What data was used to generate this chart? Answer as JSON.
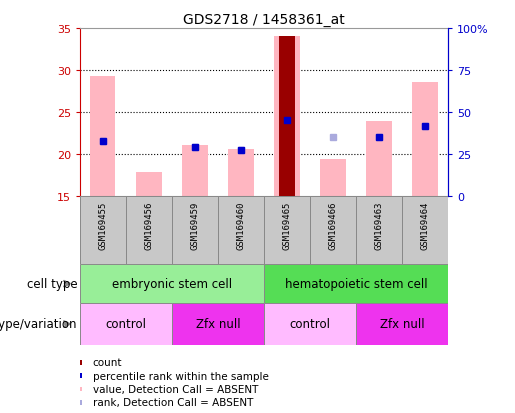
{
  "title": "GDS2718 / 1458361_at",
  "samples": [
    "GSM169455",
    "GSM169456",
    "GSM169459",
    "GSM169460",
    "GSM169465",
    "GSM169466",
    "GSM169463",
    "GSM169464"
  ],
  "ylim": [
    15,
    35
  ],
  "yticks": [
    15,
    20,
    25,
    30,
    35
  ],
  "right_yticks": [
    0,
    25,
    50,
    75,
    100
  ],
  "right_ylabels": [
    "0",
    "25",
    "50",
    "75",
    "100%"
  ],
  "pink_bar_bottoms": [
    15,
    15,
    15,
    15,
    15,
    15,
    15,
    15
  ],
  "pink_bar_tops": [
    29.3,
    17.8,
    21.0,
    20.6,
    34.0,
    19.4,
    23.9,
    28.5
  ],
  "red_bar_present": [
    false,
    false,
    false,
    false,
    true,
    false,
    false,
    false
  ],
  "red_bar_tops": [
    0,
    0,
    0,
    0,
    34.0,
    0,
    0,
    0
  ],
  "blue_square_y": [
    21.5,
    null,
    20.8,
    20.5,
    24.0,
    null,
    22.0,
    23.3
  ],
  "light_blue_sq_y": [
    21.5,
    null,
    20.8,
    20.5,
    null,
    22.0,
    22.0,
    23.3
  ],
  "cell_type_groups": [
    {
      "label": "embryonic stem cell",
      "start": 0,
      "end": 4,
      "color": "#98EE98"
    },
    {
      "label": "hematopoietic stem cell",
      "start": 4,
      "end": 8,
      "color": "#55DD55"
    }
  ],
  "genotype_groups": [
    {
      "label": "control",
      "start": 0,
      "end": 2,
      "color": "#FFBBFF"
    },
    {
      "label": "Zfx null",
      "start": 2,
      "end": 4,
      "color": "#EE33EE"
    },
    {
      "label": "control",
      "start": 4,
      "end": 6,
      "color": "#FFBBFF"
    },
    {
      "label": "Zfx null",
      "start": 6,
      "end": 8,
      "color": "#EE33EE"
    }
  ],
  "legend_items": [
    {
      "color": "#990000",
      "label": "count"
    },
    {
      "color": "#0000CC",
      "label": "percentile rank within the sample"
    },
    {
      "color": "#FFB6C1",
      "label": "value, Detection Call = ABSENT"
    },
    {
      "color": "#AAAADD",
      "label": "rank, Detection Call = ABSENT"
    }
  ],
  "left_axis_color": "#CC0000",
  "right_axis_color": "#0000CC",
  "grid_color": "#000000",
  "sample_box_color": "#C8C8C8",
  "sample_box_edge": "#888888"
}
